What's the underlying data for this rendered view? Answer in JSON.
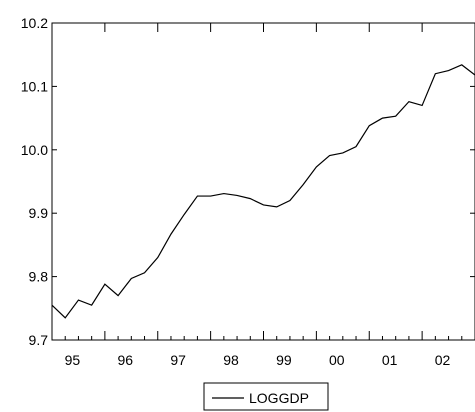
{
  "chart_data": {
    "type": "line",
    "title": "",
    "xlabel": "",
    "ylabel": "",
    "x_start": "1995Q1",
    "x_frequency": "quarterly",
    "x_tick_labels": [
      "95",
      "96",
      "97",
      "98",
      "99",
      "00",
      "01",
      "02"
    ],
    "y_tick_labels": [
      "9.7",
      "9.8",
      "9.9",
      "10.0",
      "10.1",
      "10.2"
    ],
    "y_ticks": [
      9.7,
      9.8,
      9.9,
      10.0,
      10.1,
      10.2
    ],
    "xlim": [
      "1995Q1",
      "2002Q4"
    ],
    "ylim": [
      9.7,
      10.2
    ],
    "grid": false,
    "legend_position": "bottom-center",
    "series": [
      {
        "name": "LOGGDP",
        "color": "#000000",
        "values": [
          9.755,
          9.735,
          9.763,
          9.755,
          9.788,
          9.77,
          9.797,
          9.806,
          9.83,
          9.867,
          9.898,
          9.927,
          9.927,
          9.931,
          9.928,
          9.923,
          9.913,
          9.91,
          9.92,
          9.945,
          9.973,
          9.991,
          9.995,
          10.005,
          10.038,
          10.05,
          10.053,
          10.076,
          10.07,
          10.12,
          10.125,
          10.134,
          10.118
        ]
      }
    ]
  }
}
